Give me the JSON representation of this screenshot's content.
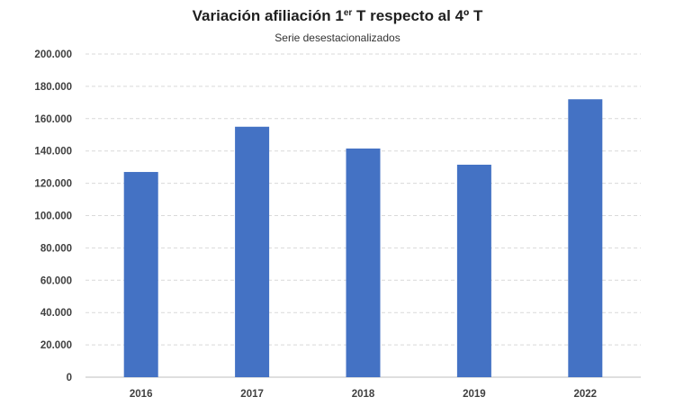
{
  "chart_data": {
    "type": "bar",
    "title_main": "Variación afiliación 1",
    "title_sup": "er",
    "title_rest": " T respecto al 4º T",
    "subtitle": "Serie desestacionalizados",
    "categories": [
      "2016",
      "2017",
      "2018",
      "2019",
      "2022"
    ],
    "values": [
      127000,
      155000,
      141500,
      131500,
      172000
    ],
    "ylim": [
      0,
      200000
    ],
    "yticks": [
      0,
      20000,
      40000,
      60000,
      80000,
      100000,
      120000,
      140000,
      160000,
      180000,
      200000
    ],
    "ytick_labels": [
      "0",
      "20.000",
      "40.000",
      "60.000",
      "80.000",
      "100.000",
      "120.000",
      "140.000",
      "160.000",
      "180.000",
      "200.000"
    ],
    "grid": true,
    "legend": "none",
    "bar_color": "#4472C4"
  }
}
